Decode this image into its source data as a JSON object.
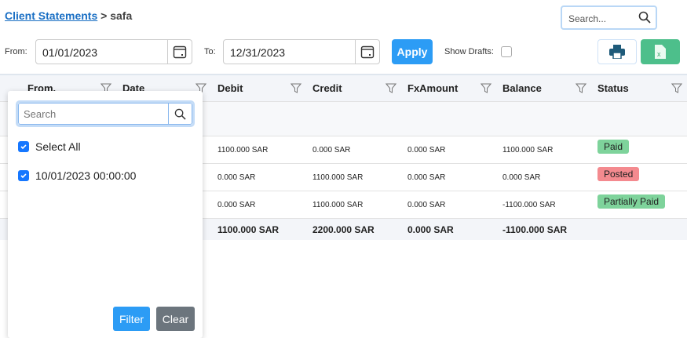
{
  "breadcrumb": {
    "link": "Client Statements",
    "sep": " > ",
    "current": "safa"
  },
  "search": {
    "placeholder": "Search..."
  },
  "filters": {
    "from_label": "From:",
    "from_value": "01/01/2023",
    "to_label": "To:",
    "to_value": "12/31/2023",
    "apply": "Apply",
    "show_drafts": "Show Drafts:",
    "show_drafts_checked": false
  },
  "columns": [
    "From.",
    "Date",
    "Debit",
    "Credit",
    "FxAmount",
    "Balance",
    "Status"
  ],
  "rows": [
    {
      "debit": "1100.000 SAR",
      "credit": "0.000 SAR",
      "fx": "0.000 SAR",
      "balance": "1100.000 SAR",
      "status": "Paid"
    },
    {
      "debit": "0.000 SAR",
      "credit": "1100.000 SAR",
      "fx": "0.000 SAR",
      "balance": "0.000 SAR",
      "status": "Posted"
    },
    {
      "debit": "0.000 SAR",
      "credit": "1100.000 SAR",
      "fx": "0.000 SAR",
      "balance": "-1100.000 SAR",
      "status": "Partially Paid"
    }
  ],
  "totals": {
    "debit": "1100.000 SAR",
    "credit": "2200.000 SAR",
    "fx": "0.000 SAR",
    "balance": "-1100.000 SAR"
  },
  "status_colors": {
    "Paid": "#7ed39b",
    "Posted": "#f48a8f",
    "Partially Paid": "#7ed39b"
  },
  "filter_popup": {
    "search_placeholder": "Search",
    "items": [
      {
        "label": "Select All",
        "checked": true
      },
      {
        "label": "10/01/2023 00:00:00",
        "checked": true
      }
    ],
    "filter": "Filter",
    "clear": "Clear"
  }
}
